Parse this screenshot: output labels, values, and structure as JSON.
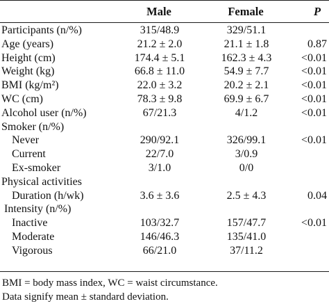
{
  "header": {
    "male": "Male",
    "female": "Female",
    "p": "P"
  },
  "rows": [
    {
      "label": "Participants (n/%)",
      "male": "315/48.9",
      "female": "329/51.1",
      "p": "",
      "style": "top"
    },
    {
      "label": "Age (years)",
      "male": "21.2 ± 2.0",
      "female": "21.1 ± 1.8",
      "p": "0.87",
      "style": "top"
    },
    {
      "label": "Height (cm)",
      "male": "174.4 ± 5.1",
      "female": "162.3 ± 4.3",
      "p": "<0.01",
      "style": "top"
    },
    {
      "label": "Weight (kg)",
      "male": "66.8 ± 11.0",
      "female": "54.9 ± 7.7",
      "p": "<0.01",
      "style": "top"
    },
    {
      "label": "BMI (kg/m²)",
      "male": "22.0 ± 3.2",
      "female": "20.2 ± 2.1",
      "p": "<0.01",
      "style": "top"
    },
    {
      "label": "WC (cm)",
      "male": "78.3 ± 9.8",
      "female": "69.9 ± 6.7",
      "p": "<0.01",
      "style": "top"
    },
    {
      "label": "Alcohol user (n/%)",
      "male": "67/21.3",
      "female": "4/1.2",
      "p": "<0.01",
      "style": "top"
    },
    {
      "label": "Smoker (n/%)",
      "male": "",
      "female": "",
      "p": "",
      "style": "top"
    },
    {
      "label": "Never",
      "male": "290/92.1",
      "female": "326/99.1",
      "p": "<0.01",
      "style": "indent"
    },
    {
      "label": "Current",
      "male": "22/7.0",
      "female": "3/0.9",
      "p": "",
      "style": "indent"
    },
    {
      "label": "Ex-smoker",
      "male": "3/1.0",
      "female": "0/0",
      "p": "",
      "style": "indent"
    },
    {
      "label": "Physical activities",
      "male": "",
      "female": "",
      "p": "",
      "style": "top"
    },
    {
      "label": "Duration (h/wk)",
      "male": "3.6 ± 3.6",
      "female": "2.5 ± 4.3",
      "p": "0.04",
      "style": "indent"
    },
    {
      "label": "Intensity (n/%)",
      "male": "",
      "female": "",
      "p": "",
      "style": "subgroup"
    },
    {
      "label": "Inactive",
      "male": "103/32.7",
      "female": "157/47.7",
      "p": "<0.01",
      "style": "indent"
    },
    {
      "label": "Moderate",
      "male": "146/46.3",
      "female": "135/41.0",
      "p": "",
      "style": "indent"
    },
    {
      "label": "Vigorous",
      "male": "66/21.0",
      "female": "37/11.2",
      "p": "",
      "style": "indent"
    }
  ],
  "footnote": {
    "line1": "BMI = body mass index, WC = waist circumstance.",
    "line2": "Data signify mean ± standard deviation."
  }
}
